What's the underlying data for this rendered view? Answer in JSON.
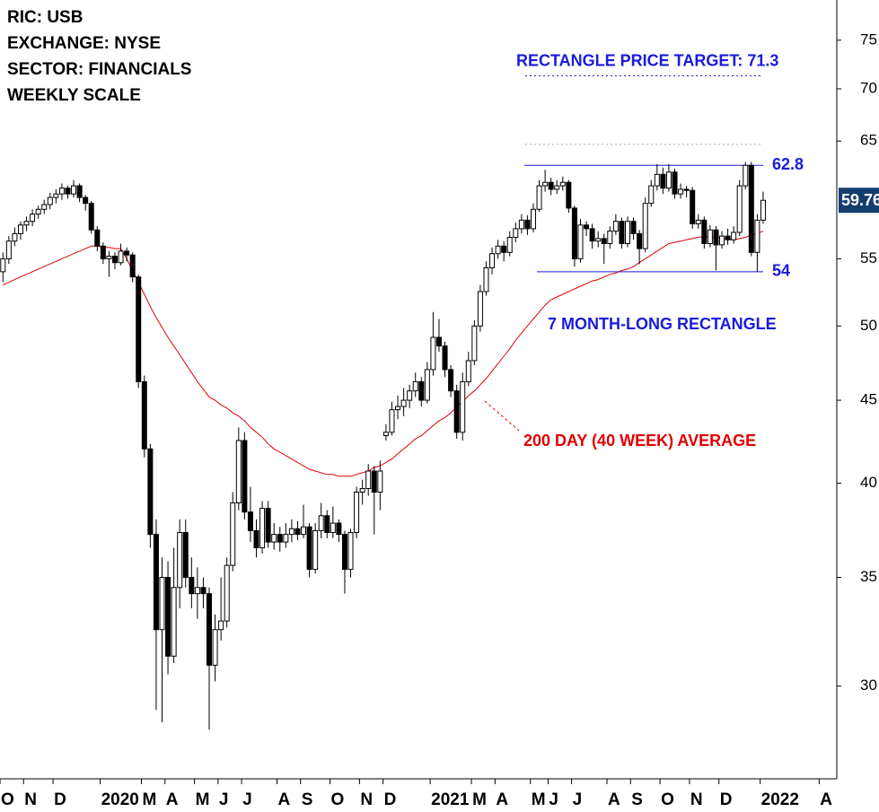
{
  "chart_data": {
    "type": "candlestick",
    "notes": [
      "RIC: USB",
      "EXCHANGE: NYSE",
      "SECTOR: FINANCIALS",
      "WEEKLY SCALE"
    ],
    "categories": [
      "O",
      null,
      null,
      null,
      "N",
      null,
      null,
      null,
      null,
      "D",
      null,
      null,
      null,
      null,
      null,
      null,
      null,
      "2020",
      null,
      null,
      null,
      null,
      null,
      null,
      "M",
      null,
      null,
      null,
      "A",
      null,
      null,
      null,
      null,
      "M",
      null,
      null,
      null,
      "J",
      null,
      null,
      null,
      "J",
      null,
      null,
      null,
      null,
      null,
      "A",
      null,
      null,
      null,
      "S",
      null,
      null,
      null,
      null,
      "O",
      null,
      null,
      null,
      null,
      "N",
      null,
      null,
      null,
      "D",
      null,
      null,
      null,
      null,
      null,
      null,
      null,
      "2021",
      null,
      null,
      null,
      null,
      null,
      null,
      "M",
      null,
      null,
      null,
      "A",
      null,
      null,
      null,
      null,
      null,
      "M",
      null,
      null,
      "J",
      null,
      null,
      null,
      "J",
      null,
      null,
      null,
      null,
      null,
      "A",
      null,
      null,
      null,
      "S",
      null,
      null,
      null,
      null,
      "O",
      null,
      null,
      null,
      null,
      "N",
      null,
      null,
      null,
      null,
      "D",
      null,
      null,
      null,
      null,
      null,
      null,
      "2022",
      null,
      null,
      null,
      null,
      null,
      null,
      null,
      null,
      null,
      "A",
      null,
      null
    ],
    "ohlc": [
      [
        54.0,
        55.5,
        53.2,
        55.0
      ],
      [
        55.0,
        56.8,
        54.6,
        56.4
      ],
      [
        56.4,
        57.5,
        56.0,
        57.0
      ],
      [
        57.0,
        58.0,
        56.5,
        57.7
      ],
      [
        57.7,
        58.4,
        57.2,
        58.0
      ],
      [
        58.0,
        59.0,
        57.6,
        58.6
      ],
      [
        58.6,
        59.3,
        58.2,
        59.0
      ],
      [
        59.0,
        59.8,
        58.6,
        59.4
      ],
      [
        59.4,
        60.4,
        59.0,
        60.0
      ],
      [
        60.0,
        60.7,
        59.5,
        60.3
      ],
      [
        60.3,
        61.2,
        59.8,
        60.8
      ],
      [
        60.8,
        61.0,
        59.9,
        60.3
      ],
      [
        60.3,
        61.5,
        60.0,
        61.0
      ],
      [
        61.0,
        61.2,
        59.6,
        60.0
      ],
      [
        60.0,
        60.2,
        58.9,
        59.5
      ],
      [
        59.5,
        59.7,
        57.0,
        57.3
      ],
      [
        57.3,
        57.6,
        55.6,
        56.0
      ],
      [
        56.0,
        56.3,
        54.6,
        55.0
      ],
      [
        55.0,
        55.6,
        53.6,
        55.2
      ],
      [
        55.2,
        55.5,
        54.2,
        54.7
      ],
      [
        54.7,
        56.2,
        54.5,
        55.6
      ],
      [
        55.6,
        55.9,
        54.8,
        55.3
      ],
      [
        55.3,
        55.5,
        53.2,
        53.6
      ],
      [
        53.6,
        53.8,
        45.8,
        46.2
      ],
      [
        46.2,
        46.6,
        41.5,
        42.0
      ],
      [
        42.0,
        42.3,
        36.5,
        37.2
      ],
      [
        37.2,
        38.0,
        29.0,
        32.5
      ],
      [
        32.5,
        36.0,
        28.5,
        35.0
      ],
      [
        35.0,
        35.8,
        30.5,
        31.3
      ],
      [
        31.3,
        36.5,
        31.0,
        34.5
      ],
      [
        34.5,
        38.0,
        33.5,
        37.3
      ],
      [
        37.3,
        38.0,
        34.5,
        35.0
      ],
      [
        35.0,
        36.0,
        33.5,
        34.2
      ],
      [
        34.2,
        35.5,
        33.0,
        34.5
      ],
      [
        34.5,
        35.0,
        33.5,
        34.2
      ],
      [
        34.2,
        34.5,
        28.2,
        30.9
      ],
      [
        30.9,
        33.2,
        30.2,
        32.5
      ],
      [
        32.5,
        35.0,
        32.0,
        32.9
      ],
      [
        32.9,
        36.0,
        32.6,
        35.6
      ],
      [
        35.6,
        39.5,
        35.3,
        38.9
      ],
      [
        38.9,
        43.3,
        38.5,
        42.5
      ],
      [
        42.5,
        43.0,
        38.0,
        38.4
      ],
      [
        38.4,
        39.8,
        36.8,
        37.4
      ],
      [
        37.4,
        38.0,
        36.0,
        36.5
      ],
      [
        36.5,
        39.0,
        36.2,
        38.6
      ],
      [
        38.6,
        39.0,
        36.5,
        36.8
      ],
      [
        36.8,
        37.8,
        36.4,
        37.2
      ],
      [
        37.2,
        37.6,
        36.3,
        36.8
      ],
      [
        36.8,
        37.8,
        36.5,
        37.2
      ],
      [
        37.2,
        38.0,
        36.8,
        37.5
      ],
      [
        37.5,
        37.9,
        36.9,
        37.2
      ],
      [
        37.2,
        38.8,
        37.0,
        37.6
      ],
      [
        37.6,
        37.8,
        35.0,
        35.4
      ],
      [
        35.4,
        37.8,
        35.2,
        37.4
      ],
      [
        37.4,
        38.9,
        37.0,
        38.2
      ],
      [
        38.2,
        38.5,
        37.0,
        37.3
      ],
      [
        37.3,
        38.7,
        37.0,
        37.8
      ],
      [
        37.8,
        38.0,
        36.8,
        37.2
      ],
      [
        37.2,
        37.4,
        34.2,
        35.4
      ],
      [
        35.4,
        37.5,
        35.0,
        37.3
      ],
      [
        37.3,
        39.8,
        37.0,
        39.5
      ],
      [
        39.5,
        40.2,
        38.8,
        39.7
      ],
      [
        39.7,
        41.1,
        39.3,
        40.7
      ],
      [
        40.7,
        41.0,
        37.2,
        39.5
      ],
      [
        39.5,
        41.3,
        38.5,
        40.7
      ],
      [
        42.8,
        43.5,
        42.5,
        43.0
      ],
      [
        43.0,
        44.9,
        42.8,
        44.4
      ],
      [
        44.4,
        45.3,
        43.8,
        44.6
      ],
      [
        44.6,
        45.8,
        44.0,
        45.0
      ],
      [
        45.0,
        46.0,
        44.5,
        45.6
      ],
      [
        45.6,
        46.8,
        45.2,
        46.2
      ],
      [
        46.2,
        46.5,
        44.6,
        45.0
      ],
      [
        45.0,
        47.5,
        44.8,
        47.0
      ],
      [
        47.0,
        51.0,
        46.6,
        49.2
      ],
      [
        49.2,
        50.5,
        48.2,
        48.6
      ],
      [
        48.6,
        48.9,
        46.5,
        47.0
      ],
      [
        47.0,
        47.3,
        45.2,
        45.6
      ],
      [
        45.6,
        46.0,
        42.6,
        43.0
      ],
      [
        43.0,
        46.8,
        42.5,
        46.2
      ],
      [
        46.2,
        48.2,
        45.9,
        47.6
      ],
      [
        47.6,
        50.4,
        47.3,
        50.0
      ],
      [
        50.0,
        53.0,
        49.6,
        52.5
      ],
      [
        52.5,
        54.8,
        52.2,
        54.3
      ],
      [
        54.3,
        55.9,
        53.8,
        55.4
      ],
      [
        55.4,
        56.5,
        55.0,
        56.0
      ],
      [
        56.0,
        56.4,
        54.8,
        55.5
      ],
      [
        55.5,
        57.2,
        55.2,
        56.7
      ],
      [
        56.7,
        57.9,
        56.3,
        57.4
      ],
      [
        57.4,
        58.6,
        57.0,
        58.1
      ],
      [
        58.1,
        58.5,
        56.9,
        57.4
      ],
      [
        57.4,
        59.5,
        57.1,
        59.0
      ],
      [
        59.0,
        61.5,
        58.8,
        61.0
      ],
      [
        61.0,
        62.4,
        60.5,
        61.3
      ],
      [
        61.3,
        61.7,
        60.2,
        60.7
      ],
      [
        60.7,
        61.5,
        60.3,
        61.0
      ],
      [
        61.0,
        61.8,
        60.6,
        61.3
      ],
      [
        61.3,
        61.5,
        58.7,
        59.1
      ],
      [
        59.1,
        59.3,
        54.4,
        55.0
      ],
      [
        55.0,
        58.2,
        54.7,
        57.7
      ],
      [
        57.7,
        58.0,
        56.8,
        57.4
      ],
      [
        57.4,
        57.8,
        55.8,
        56.4
      ],
      [
        56.4,
        57.2,
        55.9,
        56.6
      ],
      [
        56.6,
        57.0,
        54.6,
        56.2
      ],
      [
        56.2,
        57.6,
        55.8,
        57.2
      ],
      [
        57.2,
        58.6,
        56.9,
        58.0
      ],
      [
        58.0,
        58.3,
        55.8,
        56.2
      ],
      [
        56.2,
        58.4,
        55.9,
        58.0
      ],
      [
        58.0,
        58.3,
        56.5,
        57.0
      ],
      [
        57.0,
        57.3,
        54.6,
        55.8
      ],
      [
        55.8,
        60.0,
        55.5,
        59.5
      ],
      [
        59.5,
        61.5,
        59.2,
        61.0
      ],
      [
        61.0,
        62.9,
        60.6,
        62.0
      ],
      [
        62.0,
        62.6,
        60.3,
        60.8
      ],
      [
        60.8,
        62.9,
        60.5,
        62.2
      ],
      [
        62.2,
        62.5,
        59.9,
        60.3
      ],
      [
        60.3,
        61.2,
        59.9,
        60.7
      ],
      [
        60.7,
        61.0,
        60.0,
        60.6
      ],
      [
        60.6,
        60.9,
        57.4,
        57.8
      ],
      [
        57.8,
        58.6,
        57.4,
        58.1
      ],
      [
        58.1,
        58.4,
        55.8,
        56.2
      ],
      [
        56.2,
        57.7,
        55.9,
        57.3
      ],
      [
        57.3,
        57.6,
        54.1,
        56.1
      ],
      [
        56.1,
        57.2,
        55.8,
        56.8
      ],
      [
        56.8,
        57.4,
        56.1,
        56.5
      ],
      [
        56.5,
        57.6,
        56.2,
        57.1
      ],
      [
        57.1,
        61.5,
        56.8,
        61.0
      ],
      [
        61.0,
        63.1,
        60.7,
        62.8
      ],
      [
        62.8,
        63.1,
        55.2,
        55.5
      ],
      [
        55.5,
        58.6,
        54.0,
        58.1
      ],
      [
        58.1,
        60.5,
        57.8,
        59.76
      ],
      null,
      null,
      null,
      null,
      null,
      null,
      null,
      null,
      null,
      null,
      null,
      null
    ],
    "up_color": "#ffffff",
    "down_color": "#000000",
    "series": [
      {
        "name": "200 DAY (40 WEEK) AVERAGE",
        "color": "#e00000",
        "values": [
          53.0,
          53.2,
          53.4,
          53.6,
          53.8,
          54.0,
          54.2,
          54.4,
          54.6,
          54.8,
          55.0,
          55.2,
          55.4,
          55.6,
          55.8,
          56.0,
          56.0,
          55.9,
          55.9,
          55.8,
          55.8,
          55.0,
          54.1,
          53.2,
          52.3,
          51.4,
          50.6,
          49.9,
          49.2,
          48.6,
          48.0,
          47.4,
          46.8,
          46.2,
          45.7,
          45.2,
          45.0,
          44.7,
          44.5,
          44.2,
          44.0,
          43.7,
          43.3,
          43.0,
          42.7,
          42.3,
          42.0,
          41.8,
          41.6,
          41.4,
          41.2,
          41.0,
          40.8,
          40.7,
          40.6,
          40.5,
          40.5,
          40.4,
          40.4,
          40.4,
          40.5,
          40.6,
          40.7,
          40.9,
          41.0,
          41.2,
          41.4,
          41.7,
          42.0,
          42.3,
          42.6,
          42.8,
          43.1,
          43.4,
          43.7,
          43.9,
          44.2,
          44.6,
          44.9,
          45.3,
          45.6,
          46.0,
          46.4,
          46.9,
          47.4,
          47.9,
          48.4,
          49.0,
          49.5,
          50.0,
          50.5,
          51.0,
          51.5,
          51.9,
          52.1,
          52.3,
          52.5,
          52.7,
          52.9,
          53.1,
          53.3,
          53.4,
          53.6,
          53.8,
          53.9,
          54.1,
          54.2,
          54.4,
          54.7,
          55.0,
          55.3,
          55.6,
          55.9,
          56.2,
          56.3,
          56.4,
          56.5,
          56.6,
          56.7,
          56.8,
          56.7,
          56.7,
          56.6,
          56.6,
          56.5,
          56.6,
          56.7,
          56.9,
          57.0,
          57.2,
          null,
          null,
          null,
          null,
          null,
          null,
          null,
          null,
          null,
          null,
          null,
          null
        ]
      }
    ],
    "ylim": [
      26.3,
      79.4
    ],
    "yticks": [
      30,
      35,
      40,
      45,
      50,
      55,
      65,
      70,
      75
    ],
    "log_scale": true,
    "levels": [
      {
        "label": "RECTANGLE PRICE TARGET: 71.3",
        "value": 71.3,
        "color": "#1a1adc",
        "style": "dotted"
      },
      {
        "value": 64.7,
        "color": "#aaaaaa",
        "style": "dotted"
      },
      {
        "label": "62.8",
        "value": 62.8,
        "color": "#1a1adc",
        "style": "solid"
      },
      {
        "label": "54",
        "value": 54,
        "color": "#1a1adc",
        "style": "solid"
      }
    ],
    "pattern_label": "7 MONTH-LONG RECTANGLE",
    "last_price": 59.76,
    "last_price_color": "#143e6c"
  }
}
